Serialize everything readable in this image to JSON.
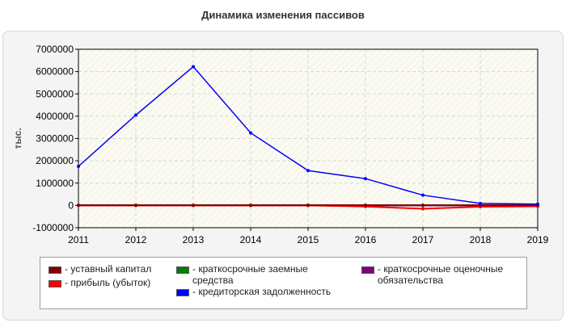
{
  "chart_data": {
    "type": "line",
    "title": "Динамика изменения пассивов",
    "ylabel": "тыс.",
    "xlabel": "",
    "x": [
      "2011",
      "2012",
      "2013",
      "2014",
      "2015",
      "2016",
      "2017",
      "2018",
      "2019"
    ],
    "ylim": [
      -1000000,
      7000000
    ],
    "yticks": [
      7000000,
      6000000,
      5000000,
      4000000,
      3000000,
      2000000,
      1000000,
      0,
      -1000000
    ],
    "ytick_labels": [
      "7000000",
      "6000000",
      "5000000",
      "4000000",
      "3000000",
      "2000000",
      "1000000",
      "0",
      "-1000000"
    ],
    "grid": true,
    "legend_position": "bottom",
    "series": [
      {
        "name": "- уставный капитал",
        "color": "#800000",
        "values": [
          10000,
          10000,
          10000,
          10000,
          10000,
          10000,
          10000,
          10000,
          10000
        ]
      },
      {
        "name": "- прибыль (убыток)",
        "color": "#ff0000",
        "values": [
          0,
          0,
          0,
          0,
          0,
          -50000,
          -150000,
          -60000,
          -40000
        ]
      },
      {
        "name": "- краткосрочные заемные средства",
        "color": "#008000",
        "values": [
          0,
          0,
          0,
          0,
          0,
          0,
          0,
          0,
          0
        ]
      },
      {
        "name": "- кредиторская задолженность",
        "color": "#0000ff",
        "values": [
          1750000,
          4050000,
          6220000,
          3250000,
          1560000,
          1200000,
          460000,
          90000,
          60000
        ]
      },
      {
        "name": "- краткосрочные оценочные обязательства",
        "color": "#800080",
        "values": [
          0,
          0,
          0,
          0,
          0,
          0,
          0,
          0,
          0
        ]
      }
    ]
  },
  "legend": {
    "items": [
      {
        "label": "- уставный капитал",
        "color": "#800000"
      },
      {
        "label": "- прибыль (убыток)",
        "color": "#ff0000"
      },
      {
        "label": "- краткосрочные заемные средства",
        "color": "#008000"
      },
      {
        "label": "- кредиторская задолженность",
        "color": "#0000ff"
      },
      {
        "label": "- краткосрочные оценочные обязательства",
        "color": "#800080"
      }
    ]
  }
}
